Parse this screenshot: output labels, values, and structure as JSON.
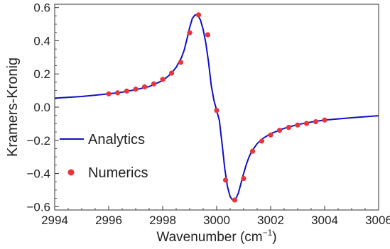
{
  "chart_data": {
    "type": "line",
    "xlabel": "Wavenumber (cm⁻¹)",
    "ylabel": "Kramers-Kronig",
    "xlim": [
      2994,
      3006
    ],
    "ylim": [
      -0.62,
      0.62
    ],
    "x_ticks": [
      2994,
      2996,
      2998,
      3000,
      3002,
      3004,
      3006
    ],
    "y_ticks": [
      -0.6,
      -0.4,
      -0.2,
      0.0,
      0.2,
      0.4,
      0.6
    ],
    "x_tick_labels": [
      "2994",
      "2996",
      "2998",
      "3000",
      "3002",
      "3004",
      "3006"
    ],
    "y_tick_labels": [
      "−0.6",
      "−0.4",
      "−0.2",
      "0.0",
      "0.2",
      "0.4",
      "0.6"
    ],
    "grid": false,
    "legend_position": "bottom-left",
    "series": [
      {
        "name": "Analytics",
        "kind": "line",
        "color": "#1010c8",
        "x": [
          2994.0,
          2995.0,
          2996.0,
          2996.5,
          2997.0,
          2997.5,
          2998.0,
          2998.3,
          2998.5,
          2998.7,
          2998.8,
          2998.9,
          2999.0,
          2999.1,
          2999.2,
          2999.3,
          2999.4,
          2999.5,
          2999.6,
          2999.7,
          2999.8,
          2999.9,
          3000.0,
          3000.1,
          3000.2,
          3000.3,
          3000.4,
          3000.5,
          3000.6,
          3000.7,
          3000.8,
          3000.9,
          3001.0,
          3001.1,
          3001.2,
          3001.3,
          3001.5,
          3001.7,
          3002.0,
          3002.5,
          3003.0,
          3003.5,
          3004.0,
          3005.0,
          3006.0
        ],
        "y": [
          0.054,
          0.064,
          0.08,
          0.09,
          0.105,
          0.124,
          0.16,
          0.2,
          0.24,
          0.3,
          0.345,
          0.41,
          0.48,
          0.535,
          0.556,
          0.553,
          0.525,
          0.468,
          0.385,
          0.27,
          0.13,
          0.04,
          -0.02,
          -0.08,
          -0.22,
          -0.37,
          -0.48,
          -0.54,
          -0.562,
          -0.555,
          -0.52,
          -0.46,
          -0.4,
          -0.345,
          -0.3,
          -0.266,
          -0.22,
          -0.19,
          -0.16,
          -0.128,
          -0.105,
          -0.09,
          -0.078,
          -0.064,
          -0.052
        ]
      },
      {
        "name": "Numerics",
        "kind": "scatter",
        "color": "#e8343a",
        "x": [
          2996.0,
          2996.33,
          2996.67,
          2997.0,
          2997.33,
          2997.67,
          2998.0,
          2998.33,
          2998.67,
          2999.0,
          2999.33,
          2999.67,
          3000.0,
          3000.33,
          3000.67,
          3001.0,
          3001.33,
          3001.67,
          3002.0,
          3002.33,
          3002.67,
          3003.0,
          3003.33,
          3003.67,
          3004.0
        ],
        "y": [
          0.08,
          0.086,
          0.097,
          0.108,
          0.122,
          0.14,
          0.167,
          0.205,
          0.27,
          0.448,
          0.556,
          0.436,
          -0.02,
          -0.44,
          -0.56,
          -0.43,
          -0.266,
          -0.205,
          -0.168,
          -0.14,
          -0.122,
          -0.108,
          -0.098,
          -0.088,
          -0.078
        ]
      }
    ]
  }
}
